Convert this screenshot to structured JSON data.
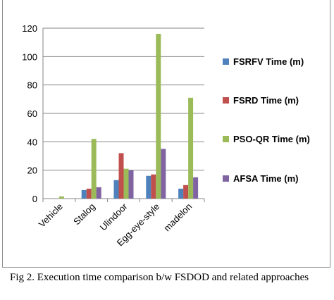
{
  "caption": "Fig 2. Execution time comparison b/w FSDOD and related approaches",
  "chart_data": {
    "type": "bar",
    "title": "",
    "xlabel": "",
    "ylabel": "",
    "ylim": [
      0,
      120
    ],
    "yticks": [
      0,
      20,
      40,
      60,
      80,
      100,
      120
    ],
    "grid": true,
    "legend_position": "right",
    "categories": [
      "Vehicle",
      "Stalog",
      "Ulindoor",
      "Egg-eye-style",
      "madelon"
    ],
    "series": [
      {
        "name": "FSRFV Time (m)",
        "color": "#4f81bd",
        "values": [
          0,
          6,
          13,
          16,
          7
        ]
      },
      {
        "name": "FSRD Time (m)",
        "color": "#c0504d",
        "values": [
          0,
          7,
          32,
          17,
          9.5
        ]
      },
      {
        "name": "PSO-QR Time (m)",
        "color": "#9bbb59",
        "values": [
          1.5,
          42,
          21,
          116,
          71
        ]
      },
      {
        "name": "AFSA Time (m)",
        "color": "#8064a2",
        "values": [
          0,
          8,
          20,
          35,
          15
        ]
      }
    ]
  }
}
